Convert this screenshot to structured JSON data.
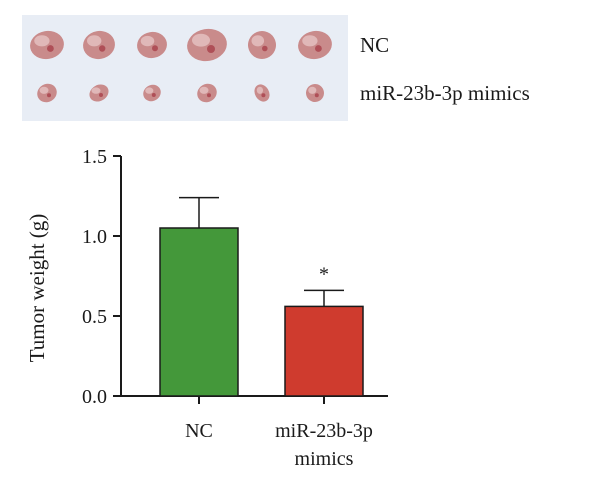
{
  "photo": {
    "groups": [
      {
        "label": "NC",
        "tumor_color": "#c98b8b",
        "tumors": 6
      },
      {
        "label": "miR-23b-3p mimics",
        "tumor_color": "#c98b8b",
        "tumors": 6
      }
    ],
    "background": "#e8edf5"
  },
  "chart_data": {
    "type": "bar",
    "categories": [
      [
        "NC"
      ],
      [
        "miR-23b-3p",
        "mimics"
      ]
    ],
    "values": [
      1.05,
      0.56
    ],
    "errors": [
      0.19,
      0.1
    ],
    "colors": [
      "#44983a",
      "#cf3b2e"
    ],
    "significance": [
      "",
      "*"
    ],
    "ylabel": "Tumor weight (g)",
    "xlabel": "",
    "ylim": [
      0,
      1.5
    ],
    "yticks": [
      "0.0",
      "0.5",
      "1.0",
      "1.5"
    ],
    "grid": false
  }
}
